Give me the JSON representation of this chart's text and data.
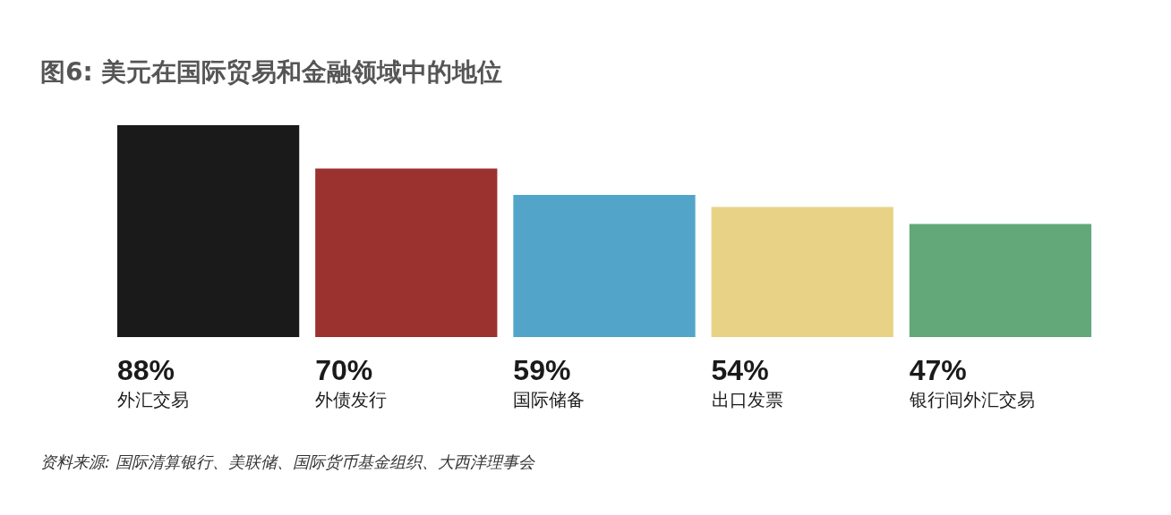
{
  "chart_data": {
    "type": "bar",
    "title": "图6: 美元在国际贸易和金融领域中的地位",
    "categories": [
      "外汇交易",
      "外债发行",
      "国际储备",
      "出口发票",
      "银行间外汇交易"
    ],
    "values": [
      88,
      70,
      59,
      54,
      47
    ],
    "colors": [
      "#1a1a1a",
      "#9b3230",
      "#52a5c9",
      "#e8d286",
      "#62a878"
    ],
    "value_labels": [
      "88%",
      "70%",
      "59%",
      "54%",
      "47%"
    ],
    "annotations": [
      "资料来源: 国际清算银行、美联储、国际货币基金组织、大西洋理事会"
    ],
    "legend": false
  }
}
